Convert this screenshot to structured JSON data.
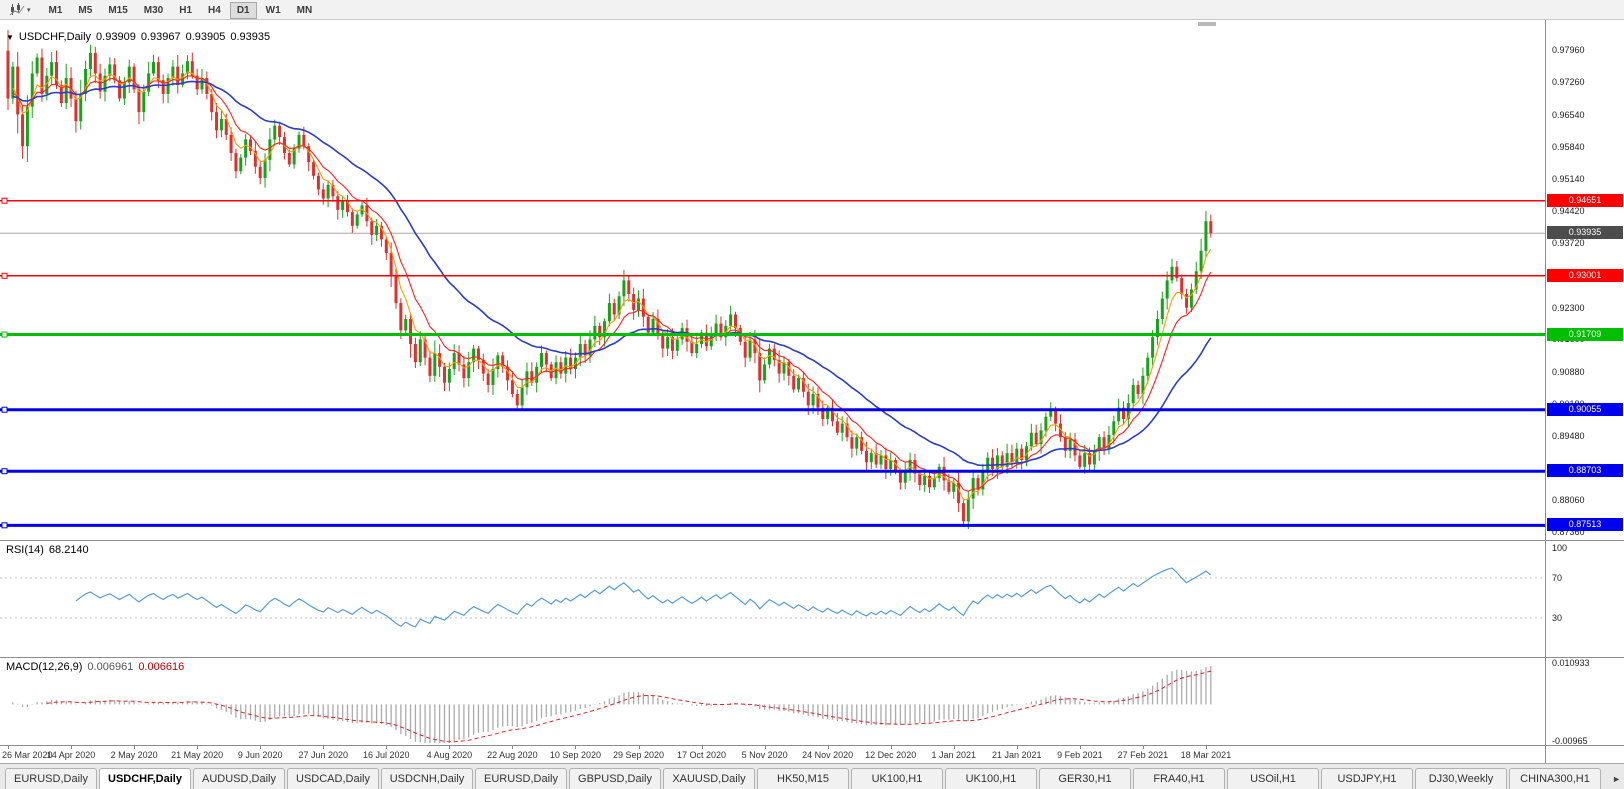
{
  "toolbar": {
    "timeframes": [
      "M1",
      "M5",
      "M15",
      "M30",
      "H1",
      "H4",
      "D1",
      "W1",
      "MN"
    ],
    "active_timeframe": "D1"
  },
  "icons": {
    "title_dropdown": "▼",
    "caret_down": "▾",
    "tab_scroll_right": "►"
  },
  "chart": {
    "symbol_title": "USDCHF,Daily",
    "ohlc": {
      "open": "0.93909",
      "high": "0.93967",
      "low": "0.93905",
      "close": "0.93935"
    },
    "price_axis_ticks": [
      "0.97960",
      "0.97260",
      "0.96540",
      "0.95840",
      "0.95140",
      "0.94420",
      "0.93720",
      "0.93020",
      "0.92300",
      "0.91600",
      "0.90880",
      "0.90180",
      "0.89480",
      "0.88780",
      "0.88060",
      "0.87360"
    ],
    "date_labels": [
      "26 Mar 2020",
      "14 Apr 2020",
      "2 May 2020",
      "21 May 2020",
      "9 Jun 2020",
      "27 Jun 2020",
      "16 Jul 2020",
      "4 Aug 2020",
      "22 Aug 2020",
      "10 Sep 2020",
      "29 Sep 2020",
      "17 Oct 2020",
      "5 Nov 2020",
      "24 Nov 2020",
      "12 Dec 2020",
      "1 Jan 2021",
      "21 Jan 2021",
      "9 Feb 2021",
      "27 Feb 2021",
      "18 Mar 2021"
    ],
    "colors": {
      "up": "#17A317",
      "down": "#E02F2F",
      "bid_line": "#A8A8A8",
      "bid_badge": "#4D4D4D"
    }
  },
  "chart_data": {
    "type": "candlestick",
    "symbol": "USDCHF",
    "timeframe": "Daily",
    "y_range": [
      0.8719,
      0.9845
    ],
    "first_open": 0.9795,
    "closes": [
      0.969,
      0.976,
      0.9655,
      0.9585,
      0.9672,
      0.9745,
      0.978,
      0.97,
      0.974,
      0.977,
      0.972,
      0.968,
      0.9735,
      0.969,
      0.964,
      0.97,
      0.9755,
      0.979,
      0.9745,
      0.9705,
      0.974,
      0.9765,
      0.973,
      0.969,
      0.9725,
      0.976,
      0.971,
      0.966,
      0.9705,
      0.9745,
      0.977,
      0.973,
      0.97,
      0.9735,
      0.976,
      0.972,
      0.9745,
      0.9772,
      0.974,
      0.971,
      0.9735,
      0.97,
      0.966,
      0.962,
      0.9645,
      0.961,
      0.957,
      0.953,
      0.956,
      0.96,
      0.9575,
      0.954,
      0.9515,
      0.9555,
      0.96,
      0.963,
      0.9605,
      0.957,
      0.9545,
      0.958,
      0.961,
      0.9585,
      0.955,
      0.952,
      0.949,
      0.947,
      0.95,
      0.9475,
      0.9445,
      0.9465,
      0.944,
      0.941,
      0.9435,
      0.9455,
      0.942,
      0.939,
      0.941,
      0.938,
      0.935,
      0.93,
      0.924,
      0.918,
      0.9205,
      0.915,
      0.911,
      0.916,
      0.912,
      0.908,
      0.913,
      0.91,
      0.9065,
      0.9095,
      0.913,
      0.9105,
      0.9075,
      0.911,
      0.914,
      0.9115,
      0.9085,
      0.906,
      0.9095,
      0.9125,
      0.91,
      0.907,
      0.904,
      0.9015,
      0.9055,
      0.909,
      0.9065,
      0.91,
      0.913,
      0.9105,
      0.9075,
      0.911,
      0.9085,
      0.912,
      0.9095,
      0.912,
      0.915,
      0.9125,
      0.916,
      0.919,
      0.9165,
      0.92,
      0.924,
      0.9215,
      0.9255,
      0.929,
      0.926,
      0.9225,
      0.925,
      0.921,
      0.9175,
      0.9205,
      0.917,
      0.914,
      0.9165,
      0.9135,
      0.916,
      0.9185,
      0.9155,
      0.913,
      0.915,
      0.9175,
      0.9145,
      0.917,
      0.9195,
      0.9165,
      0.919,
      0.9215,
      0.9185,
      0.9155,
      0.912,
      0.916,
      0.913,
      0.907,
      0.9105,
      0.914,
      0.9115,
      0.9085,
      0.911,
      0.908,
      0.905,
      0.9075,
      0.9045,
      0.9015,
      0.904,
      0.901,
      0.8985,
      0.901,
      0.898,
      0.8955,
      0.8975,
      0.8945,
      0.892,
      0.8945,
      0.8915,
      0.889,
      0.891,
      0.8885,
      0.8905,
      0.8875,
      0.8895,
      0.887,
      0.8845,
      0.887,
      0.8895,
      0.8865,
      0.884,
      0.886,
      0.8835,
      0.8855,
      0.888,
      0.885,
      0.8825,
      0.8845,
      0.88,
      0.876,
      0.881,
      0.8855,
      0.883,
      0.887,
      0.89,
      0.8875,
      0.8905,
      0.888,
      0.891,
      0.889,
      0.892,
      0.8895,
      0.8925,
      0.8955,
      0.893,
      0.896,
      0.899,
      0.9005,
      0.8975,
      0.8945,
      0.8915,
      0.894,
      0.8905,
      0.888,
      0.891,
      0.8885,
      0.8915,
      0.8945,
      0.892,
      0.895,
      0.898,
      0.901,
      0.8985,
      0.902,
      0.906,
      0.904,
      0.908,
      0.912,
      0.9165,
      0.9205,
      0.925,
      0.929,
      0.932,
      0.9295,
      0.926,
      0.923,
      0.927,
      0.931,
      0.9355,
      0.942,
      0.93935
    ],
    "bid": {
      "value": 0.93935,
      "label": "0.93935"
    },
    "levels": [
      {
        "value": 0.94651,
        "label": "0.94651",
        "color": "#FF0000",
        "width": 1.5
      },
      {
        "value": 0.93001,
        "label": "0.93001",
        "color": "#FF0000",
        "width": 1.5
      },
      {
        "value": 0.91709,
        "label": "0.91709",
        "color": "#00BE00",
        "width": 3
      },
      {
        "value": 0.90055,
        "label": "0.90055",
        "color": "#0000F0",
        "width": 3
      },
      {
        "value": 0.88703,
        "label": "0.88703",
        "color": "#0000F0",
        "width": 3
      },
      {
        "value": 0.87513,
        "label": "0.87513",
        "color": "#0000F0",
        "width": 3
      }
    ],
    "moving_averages": [
      {
        "period": 5,
        "color": "#FF9C00",
        "type": "ema"
      },
      {
        "period": 10,
        "color": "#FF2020",
        "type": "ema"
      },
      {
        "period": 30,
        "color": "#2C3CC8",
        "type": "ema"
      }
    ]
  },
  "rsi": {
    "name": "RSI(14)",
    "value": "68.2140",
    "period": 14,
    "axis_labels": [
      "100",
      "70",
      "30"
    ],
    "axis_values": [
      100,
      70,
      30
    ],
    "level_lines": [
      70,
      30
    ],
    "color": "#569CD6"
  },
  "macd": {
    "name": "MACD(12,26,9)",
    "value_main": "0.006961",
    "value_signal": "0.006616",
    "fast": 12,
    "slow": 26,
    "signal": 9,
    "axis_top_label": "0.010933",
    "axis_bottom_label": "-0.00965",
    "axis_top": 0.0113,
    "axis_bottom": -0.01,
    "histogram_color": "#ABABAB",
    "signal_color": "#DD2222"
  },
  "tabs": {
    "items": [
      {
        "label": "EURUSD,Daily",
        "active": false
      },
      {
        "label": "USDCHF,Daily",
        "active": true
      },
      {
        "label": "AUDUSD,Daily",
        "active": false
      },
      {
        "label": "USDCAD,Daily",
        "active": false
      },
      {
        "label": "USDCNH,Daily",
        "active": false
      },
      {
        "label": "EURUSD,Daily",
        "active": false
      },
      {
        "label": "GBPUSD,Daily",
        "active": false
      },
      {
        "label": "XAUUSD,Daily",
        "active": false
      },
      {
        "label": "HK50,M15",
        "active": false
      },
      {
        "label": "UK100,H1",
        "active": false
      },
      {
        "label": "UK100,H1",
        "active": false
      },
      {
        "label": "GER30,H1",
        "active": false
      },
      {
        "label": "FRA40,H1",
        "active": false
      },
      {
        "label": "USOil,H1",
        "active": false
      },
      {
        "label": "USDJPY,H1",
        "active": false
      },
      {
        "label": "DJ30,Weekly",
        "active": false
      },
      {
        "label": "CHINA300,H1",
        "active": false
      }
    ]
  }
}
